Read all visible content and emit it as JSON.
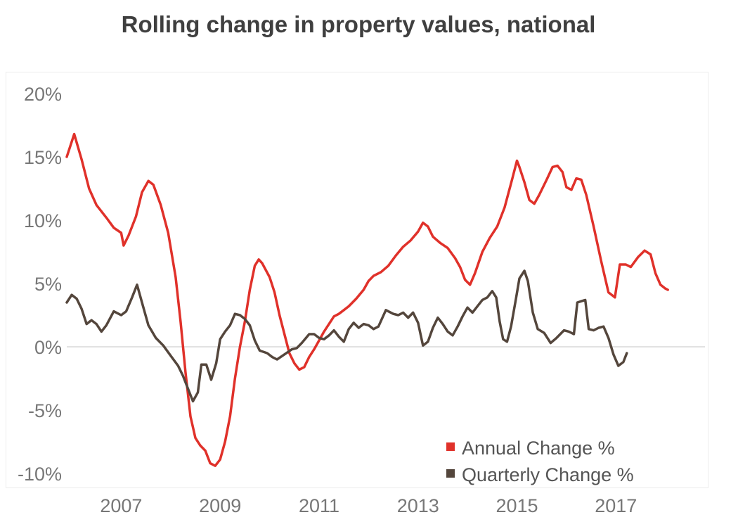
{
  "chart_data": {
    "type": "line",
    "title": "Rolling change in property values, national",
    "xlabel": "",
    "ylabel": "",
    "xlim": [
      2005.9,
      2018.8
    ],
    "ylim": [
      -10,
      20
    ],
    "y_ticks": [
      {
        "value": 20,
        "label": "20%"
      },
      {
        "value": 15,
        "label": "15%"
      },
      {
        "value": 10,
        "label": "10%"
      },
      {
        "value": 5,
        "label": "5%"
      },
      {
        "value": 0,
        "label": "0%"
      },
      {
        "value": -5,
        "label": "-5%"
      },
      {
        "value": -10,
        "label": "-10%"
      }
    ],
    "x_ticks": [
      {
        "value": 2007,
        "label": "2007"
      },
      {
        "value": 2009,
        "label": "2009"
      },
      {
        "value": 2011,
        "label": "2011"
      },
      {
        "value": 2013,
        "label": "2013"
      },
      {
        "value": 2015,
        "label": "2015"
      },
      {
        "value": 2017,
        "label": "2017"
      }
    ],
    "legend_position": "bottom-right",
    "series": [
      {
        "name": "Annual Change %",
        "legend_label": "Annual Change %",
        "color": "#e0312a",
        "points": [
          [
            2005.9,
            15.0
          ],
          [
            2006.05,
            16.8
          ],
          [
            2006.2,
            14.8
          ],
          [
            2006.35,
            12.5
          ],
          [
            2006.5,
            11.2
          ],
          [
            2006.7,
            10.2
          ],
          [
            2006.85,
            9.4
          ],
          [
            2007.0,
            9.0
          ],
          [
            2007.05,
            8.0
          ],
          [
            2007.15,
            8.8
          ],
          [
            2007.3,
            10.3
          ],
          [
            2007.42,
            12.2
          ],
          [
            2007.55,
            13.1
          ],
          [
            2007.65,
            12.8
          ],
          [
            2007.8,
            11.2
          ],
          [
            2007.95,
            9.0
          ],
          [
            2008.1,
            5.5
          ],
          [
            2008.2,
            2.0
          ],
          [
            2008.3,
            -2.0
          ],
          [
            2008.4,
            -5.5
          ],
          [
            2008.5,
            -7.2
          ],
          [
            2008.6,
            -7.8
          ],
          [
            2008.7,
            -8.2
          ],
          [
            2008.8,
            -9.2
          ],
          [
            2008.9,
            -9.4
          ],
          [
            2009.0,
            -8.9
          ],
          [
            2009.1,
            -7.5
          ],
          [
            2009.2,
            -5.5
          ],
          [
            2009.3,
            -2.5
          ],
          [
            2009.4,
            0.0
          ],
          [
            2009.5,
            2.0
          ],
          [
            2009.6,
            4.5
          ],
          [
            2009.7,
            6.4
          ],
          [
            2009.78,
            6.9
          ],
          [
            2009.85,
            6.6
          ],
          [
            2010.0,
            5.5
          ],
          [
            2010.1,
            4.3
          ],
          [
            2010.2,
            2.5
          ],
          [
            2010.3,
            1.0
          ],
          [
            2010.4,
            -0.5
          ],
          [
            2010.5,
            -1.3
          ],
          [
            2010.6,
            -1.8
          ],
          [
            2010.7,
            -1.6
          ],
          [
            2010.8,
            -0.8
          ],
          [
            2010.9,
            -0.2
          ],
          [
            2011.0,
            0.5
          ],
          [
            2011.1,
            1.2
          ],
          [
            2011.2,
            1.8
          ],
          [
            2011.3,
            2.4
          ],
          [
            2011.4,
            2.6
          ],
          [
            2011.5,
            2.9
          ],
          [
            2011.6,
            3.2
          ],
          [
            2011.75,
            3.8
          ],
          [
            2011.9,
            4.5
          ],
          [
            2012.0,
            5.2
          ],
          [
            2012.1,
            5.6
          ],
          [
            2012.25,
            5.9
          ],
          [
            2012.4,
            6.4
          ],
          [
            2012.55,
            7.2
          ],
          [
            2012.7,
            7.9
          ],
          [
            2012.85,
            8.4
          ],
          [
            2013.0,
            9.1
          ],
          [
            2013.1,
            9.8
          ],
          [
            2013.2,
            9.5
          ],
          [
            2013.3,
            8.7
          ],
          [
            2013.45,
            8.2
          ],
          [
            2013.6,
            7.8
          ],
          [
            2013.75,
            7.0
          ],
          [
            2013.85,
            6.3
          ],
          [
            2013.95,
            5.3
          ],
          [
            2014.05,
            4.9
          ],
          [
            2014.15,
            5.8
          ],
          [
            2014.3,
            7.5
          ],
          [
            2014.45,
            8.6
          ],
          [
            2014.6,
            9.5
          ],
          [
            2014.75,
            11.0
          ],
          [
            2014.9,
            13.2
          ],
          [
            2015.0,
            14.7
          ],
          [
            2015.05,
            14.2
          ],
          [
            2015.15,
            13.0
          ],
          [
            2015.25,
            11.6
          ],
          [
            2015.35,
            11.3
          ],
          [
            2015.45,
            12.0
          ],
          [
            2015.6,
            13.2
          ],
          [
            2015.72,
            14.2
          ],
          [
            2015.82,
            14.3
          ],
          [
            2015.92,
            13.8
          ],
          [
            2016.0,
            12.6
          ],
          [
            2016.1,
            12.4
          ],
          [
            2016.2,
            13.3
          ],
          [
            2016.3,
            13.2
          ],
          [
            2016.4,
            12.0
          ],
          [
            2016.55,
            9.5
          ],
          [
            2016.7,
            6.8
          ],
          [
            2016.85,
            4.3
          ],
          [
            2016.98,
            3.9
          ],
          [
            2017.08,
            6.5
          ],
          [
            2017.2,
            6.5
          ],
          [
            2017.3,
            6.3
          ],
          [
            2017.45,
            7.1
          ],
          [
            2017.58,
            7.6
          ],
          [
            2017.7,
            7.3
          ],
          [
            2017.8,
            5.8
          ],
          [
            2017.9,
            4.9
          ],
          [
            2018.0,
            4.6
          ],
          [
            2018.05,
            4.5
          ]
        ]
      },
      {
        "name": "Quarterly Change %",
        "legend_label": "Quarterly Change %",
        "color": "#54463c",
        "points": [
          [
            2005.9,
            3.5
          ],
          [
            2006.0,
            4.1
          ],
          [
            2006.1,
            3.8
          ],
          [
            2006.2,
            3.0
          ],
          [
            2006.3,
            1.8
          ],
          [
            2006.4,
            2.1
          ],
          [
            2006.5,
            1.8
          ],
          [
            2006.6,
            1.2
          ],
          [
            2006.7,
            1.7
          ],
          [
            2006.85,
            2.8
          ],
          [
            2007.0,
            2.5
          ],
          [
            2007.1,
            2.8
          ],
          [
            2007.22,
            3.9
          ],
          [
            2007.32,
            4.9
          ],
          [
            2007.42,
            3.5
          ],
          [
            2007.55,
            1.7
          ],
          [
            2007.7,
            0.7
          ],
          [
            2007.85,
            0.1
          ],
          [
            2008.0,
            -0.7
          ],
          [
            2008.15,
            -1.5
          ],
          [
            2008.25,
            -2.3
          ],
          [
            2008.35,
            -3.3
          ],
          [
            2008.45,
            -4.3
          ],
          [
            2008.55,
            -3.6
          ],
          [
            2008.62,
            -1.4
          ],
          [
            2008.72,
            -1.4
          ],
          [
            2008.82,
            -2.6
          ],
          [
            2008.92,
            -1.3
          ],
          [
            2009.0,
            0.6
          ],
          [
            2009.1,
            1.2
          ],
          [
            2009.2,
            1.7
          ],
          [
            2009.3,
            2.6
          ],
          [
            2009.4,
            2.5
          ],
          [
            2009.5,
            2.2
          ],
          [
            2009.6,
            1.7
          ],
          [
            2009.7,
            0.5
          ],
          [
            2009.8,
            -0.3
          ],
          [
            2009.95,
            -0.5
          ],
          [
            2010.05,
            -0.8
          ],
          [
            2010.15,
            -1.0
          ],
          [
            2010.3,
            -0.6
          ],
          [
            2010.45,
            -0.2
          ],
          [
            2010.55,
            -0.1
          ],
          [
            2010.65,
            0.3
          ],
          [
            2010.8,
            1.0
          ],
          [
            2010.9,
            1.0
          ],
          [
            2011.0,
            0.7
          ],
          [
            2011.1,
            0.6
          ],
          [
            2011.2,
            0.9
          ],
          [
            2011.3,
            1.3
          ],
          [
            2011.4,
            0.8
          ],
          [
            2011.5,
            0.4
          ],
          [
            2011.6,
            1.4
          ],
          [
            2011.7,
            1.9
          ],
          [
            2011.8,
            1.5
          ],
          [
            2011.9,
            1.8
          ],
          [
            2012.0,
            1.7
          ],
          [
            2012.1,
            1.4
          ],
          [
            2012.2,
            1.6
          ],
          [
            2012.35,
            2.9
          ],
          [
            2012.5,
            2.6
          ],
          [
            2012.6,
            2.5
          ],
          [
            2012.7,
            2.7
          ],
          [
            2012.8,
            2.3
          ],
          [
            2012.9,
            2.7
          ],
          [
            2013.0,
            1.9
          ],
          [
            2013.1,
            0.1
          ],
          [
            2013.2,
            0.4
          ],
          [
            2013.3,
            1.5
          ],
          [
            2013.4,
            2.3
          ],
          [
            2013.5,
            1.8
          ],
          [
            2013.6,
            1.2
          ],
          [
            2013.7,
            0.9
          ],
          [
            2013.8,
            1.6
          ],
          [
            2013.9,
            2.4
          ],
          [
            2014.0,
            3.1
          ],
          [
            2014.1,
            2.7
          ],
          [
            2014.2,
            3.2
          ],
          [
            2014.3,
            3.7
          ],
          [
            2014.4,
            3.9
          ],
          [
            2014.5,
            4.4
          ],
          [
            2014.58,
            3.9
          ],
          [
            2014.65,
            2.0
          ],
          [
            2014.72,
            0.6
          ],
          [
            2014.8,
            0.4
          ],
          [
            2014.88,
            1.6
          ],
          [
            2014.98,
            3.8
          ],
          [
            2015.05,
            5.4
          ],
          [
            2015.15,
            6.0
          ],
          [
            2015.22,
            5.2
          ],
          [
            2015.32,
            2.7
          ],
          [
            2015.42,
            1.4
          ],
          [
            2015.55,
            1.1
          ],
          [
            2015.68,
            0.3
          ],
          [
            2015.8,
            0.7
          ],
          [
            2015.95,
            1.3
          ],
          [
            2016.05,
            1.2
          ],
          [
            2016.15,
            1.0
          ],
          [
            2016.22,
            3.5
          ],
          [
            2016.3,
            3.6
          ],
          [
            2016.38,
            3.7
          ],
          [
            2016.45,
            1.4
          ],
          [
            2016.55,
            1.3
          ],
          [
            2016.65,
            1.5
          ],
          [
            2016.75,
            1.6
          ],
          [
            2016.85,
            0.7
          ],
          [
            2016.95,
            -0.6
          ],
          [
            2017.05,
            -1.5
          ],
          [
            2017.15,
            -1.2
          ],
          [
            2017.22,
            -0.5
          ]
        ]
      }
    ]
  }
}
